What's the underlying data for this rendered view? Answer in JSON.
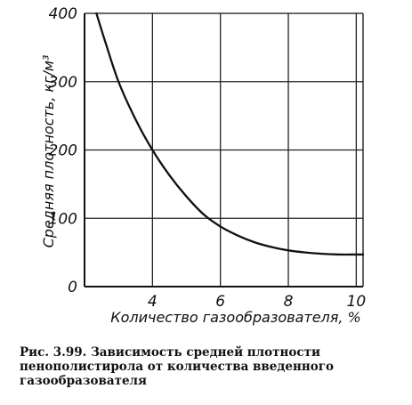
{
  "chart_data": {
    "type": "line",
    "xlabel": "Количество газообразователя, %",
    "ylabel": "Средняя плотность, кг/м³",
    "xlim": [
      2,
      10.2
    ],
    "ylim": [
      0,
      400
    ],
    "x_ticks": [
      "4",
      "6",
      "8",
      "10"
    ],
    "y_ticks": [
      "0",
      "100",
      "200",
      "300",
      "400"
    ],
    "grid": true,
    "series": [
      {
        "x": [
          2.35,
          2.6,
          3.0,
          3.5,
          4.0,
          4.5,
          5.0,
          5.5,
          6.0,
          6.5,
          7.0,
          7.5,
          8.0,
          8.5,
          9.0,
          9.5,
          10.0,
          10.2
        ],
        "y": [
          400,
          360,
          300,
          245,
          200,
          163,
          132,
          106,
          88,
          75,
          65,
          58,
          53,
          50,
          48,
          47,
          47,
          47
        ]
      }
    ]
  },
  "caption": "Рис. 3.99. Зависимость средней плотности пенополистирола от количества введенного газообразователя"
}
